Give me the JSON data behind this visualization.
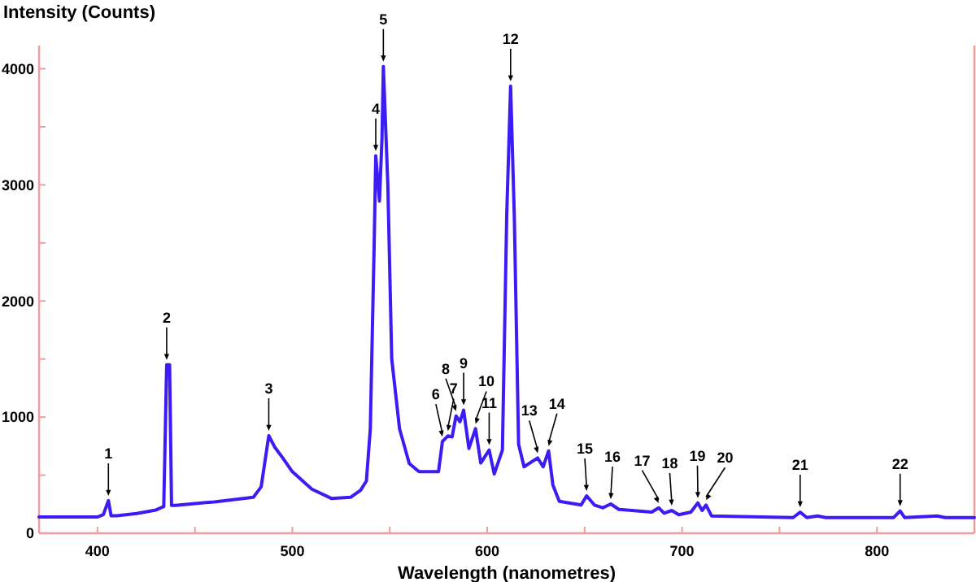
{
  "chart_data": {
    "type": "line",
    "xlabel": "Wavelength (nanometres)",
    "ylabel": "Intensity (Counts)",
    "xlim": [
      370,
      850
    ],
    "ylim": [
      0,
      4200
    ],
    "xticks": [
      400,
      {
        "value": 450,
        "label": null
      },
      500,
      {
        "value": 550,
        "label": null
      },
      600,
      {
        "value": 650,
        "label": null
      },
      700,
      {
        "value": 750,
        "label": null
      },
      800
    ],
    "yticks": [
      0,
      {
        "value": 500,
        "label": null
      },
      1000,
      {
        "value": 1500,
        "label": null
      },
      2000,
      {
        "value": 2500,
        "label": null
      },
      3000,
      {
        "value": 3500,
        "label": null
      },
      4000
    ],
    "grid": false,
    "marker": "none",
    "line_style": "solid",
    "series": [
      {
        "color": "#3b1cf2",
        "x": [
          370,
          400,
          403,
          405.6,
          407,
          410,
          420,
          430,
          434,
          435.5,
          437,
          438,
          440,
          460,
          480,
          484,
          487.9,
          491,
          495,
          500,
          510,
          520,
          530,
          535,
          538,
          540,
          542,
          542.8,
          544.7,
          546,
          546.7,
          549,
          551,
          555,
          560,
          565,
          575,
          577,
          579.8,
          582,
          584,
          586,
          587.9,
          590.6,
          594,
          596.7,
          601,
          603.6,
          607.8,
          610,
          612,
          613.9,
          616.1,
          618.9,
          625.9,
          628.7,
          631.5,
          633.7,
          637,
          648.2,
          651,
          655,
          659.3,
          663.4,
          667.6,
          684.4,
          688,
          690.8,
          694.7,
          698.3,
          704.5,
          708.1,
          710.3,
          712.3,
          715.1,
          757,
          760.6,
          764,
          769.5,
          773.7,
          808.6,
          811.9,
          814.2,
          830.9,
          835,
          850
        ],
        "values": [
          140,
          140,
          160,
          280,
          150,
          150,
          170,
          200,
          230,
          1450,
          1450,
          240,
          240,
          270,
          310,
          400,
          840,
          740,
          650,
          530,
          380,
          300,
          310,
          370,
          450,
          900,
          2500,
          3250,
          2860,
          3400,
          4020,
          3000,
          1500,
          900,
          600,
          530,
          530,
          790,
          838,
          830,
          1010,
          960,
          1060,
          730,
          900,
          605,
          717,
          510,
          717,
          2730,
          3850,
          2730,
          766,
          572,
          648,
          572,
          709,
          415,
          275,
          243,
          322,
          243,
          219,
          252,
          205,
          182,
          219,
          172,
          196,
          159,
          182,
          261,
          196,
          243,
          149,
          135,
          182,
          135,
          149,
          135,
          135,
          191,
          135,
          149,
          135,
          135
        ]
      }
    ],
    "annotations": [
      {
        "text": "1",
        "x": 405.6,
        "y": 280
      },
      {
        "text": "2",
        "x": 435.5,
        "y": 1450
      },
      {
        "text": "3",
        "x": 487.9,
        "y": 840
      },
      {
        "text": "4",
        "x": 542.8,
        "y": 3250
      },
      {
        "text": "5",
        "x": 546.7,
        "y": 4020
      },
      {
        "text": "6",
        "x": 577,
        "y": 790
      },
      {
        "text": "7",
        "x": 579.8,
        "y": 838
      },
      {
        "text": "8",
        "x": 584,
        "y": 1010
      },
      {
        "text": "9",
        "x": 587.9,
        "y": 1060
      },
      {
        "text": "10",
        "x": 594,
        "y": 900
      },
      {
        "text": "11",
        "x": 601,
        "y": 717
      },
      {
        "text": "12",
        "x": 612,
        "y": 3850
      },
      {
        "text": "13",
        "x": 625.9,
        "y": 648
      },
      {
        "text": "14",
        "x": 631.5,
        "y": 709
      },
      {
        "text": "15",
        "x": 651,
        "y": 322
      },
      {
        "text": "16",
        "x": 663.4,
        "y": 252
      },
      {
        "text": "17",
        "x": 688,
        "y": 219
      },
      {
        "text": "18",
        "x": 694.7,
        "y": 196
      },
      {
        "text": "19",
        "x": 708.1,
        "y": 261
      },
      {
        "text": "20",
        "x": 712.3,
        "y": 243
      },
      {
        "text": "21",
        "x": 760.6,
        "y": 182
      },
      {
        "text": "22",
        "x": 811.9,
        "y": 191
      }
    ]
  }
}
